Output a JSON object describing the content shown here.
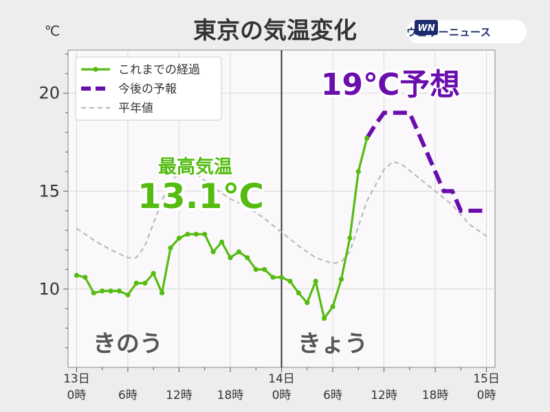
{
  "title": "東京の気温変化",
  "brand": {
    "text": "ウェザーニュース",
    "logo_text": "WN"
  },
  "colors": {
    "observed": "#55bb11",
    "forecast": "#6a0dad",
    "normal": "#bbbbbb",
    "plot_bg": "#faf8fa",
    "page_bg": "#ededed"
  },
  "chart_data": {
    "type": "line",
    "yunit": "℃",
    "ylim": [
      6.0,
      22.2
    ],
    "xlim": [
      -1,
      49
    ],
    "grid": true,
    "now_line_x": 24,
    "y_ticks": [
      10,
      15,
      20
    ],
    "x_ticks": [
      {
        "x": 0,
        "line1": "13日",
        "line2": "0時"
      },
      {
        "x": 6,
        "line1": "",
        "line2": "6時"
      },
      {
        "x": 12,
        "line1": "",
        "line2": "12時"
      },
      {
        "x": 18,
        "line1": "",
        "line2": "18時"
      },
      {
        "x": 24,
        "line1": "14日",
        "line2": "0時"
      },
      {
        "x": 30,
        "line1": "",
        "line2": "6時"
      },
      {
        "x": 36,
        "line1": "",
        "line2": "12時"
      },
      {
        "x": 42,
        "line1": "",
        "line2": "18時"
      },
      {
        "x": 48,
        "line1": "15日",
        "line2": "0時"
      }
    ],
    "legend": {
      "position": "top-left",
      "entries": [
        "これまでの経過",
        "今後の予報",
        "平年値"
      ]
    },
    "series": [
      {
        "name": "これまでの経過",
        "style": "solid-markers",
        "x": [
          0,
          1,
          2,
          3,
          4,
          5,
          6,
          7,
          8,
          9,
          10,
          11,
          12,
          13,
          14,
          15,
          16,
          17,
          18,
          19,
          20,
          21,
          22,
          23,
          24,
          25,
          26,
          27,
          28,
          29,
          30,
          31,
          32,
          33,
          34
        ],
        "y": [
          10.7,
          10.6,
          9.8,
          9.9,
          9.9,
          9.9,
          9.7,
          10.3,
          10.3,
          10.8,
          9.8,
          12.1,
          12.6,
          12.8,
          12.8,
          12.8,
          11.9,
          12.4,
          11.6,
          11.9,
          11.6,
          11.0,
          11.0,
          10.6,
          10.6,
          10.4,
          9.8,
          9.3,
          10.4,
          8.5,
          9.1,
          10.5,
          12.6,
          16.0,
          17.7
        ]
      },
      {
        "name": "今後の予報",
        "style": "dashed-thick",
        "x": [
          34,
          35,
          36,
          37,
          38,
          39,
          40,
          41,
          42,
          43,
          44,
          45,
          46,
          47,
          48
        ],
        "y": [
          17.7,
          18.4,
          19.0,
          19.0,
          19.0,
          19.0,
          18.0,
          17.0,
          16.0,
          15.0,
          15.0,
          14.0,
          14.0,
          14.0,
          14.0
        ]
      },
      {
        "name": "平年値",
        "style": "dashed-thin",
        "x": [
          0,
          2,
          4,
          6,
          7,
          8,
          10,
          11,
          12,
          13,
          14,
          16,
          18,
          20,
          22,
          24,
          26,
          28,
          30,
          31,
          32,
          33,
          34,
          36,
          37,
          38,
          40,
          42,
          44,
          46,
          48
        ],
        "y": [
          13.1,
          12.5,
          12.0,
          11.6,
          11.6,
          12.2,
          14.5,
          15.5,
          15.9,
          16.0,
          15.9,
          15.2,
          14.6,
          14.2,
          13.6,
          12.9,
          12.2,
          11.6,
          11.3,
          11.4,
          11.9,
          13.2,
          14.5,
          16.1,
          16.5,
          16.4,
          15.7,
          15.0,
          14.3,
          13.3,
          12.7
        ]
      }
    ],
    "annotations": {
      "max_label": "最高気温",
      "max_value": "13.1℃",
      "forecast_label": "19℃予想",
      "day1_label": "きのう",
      "day2_label": "きょう"
    }
  }
}
